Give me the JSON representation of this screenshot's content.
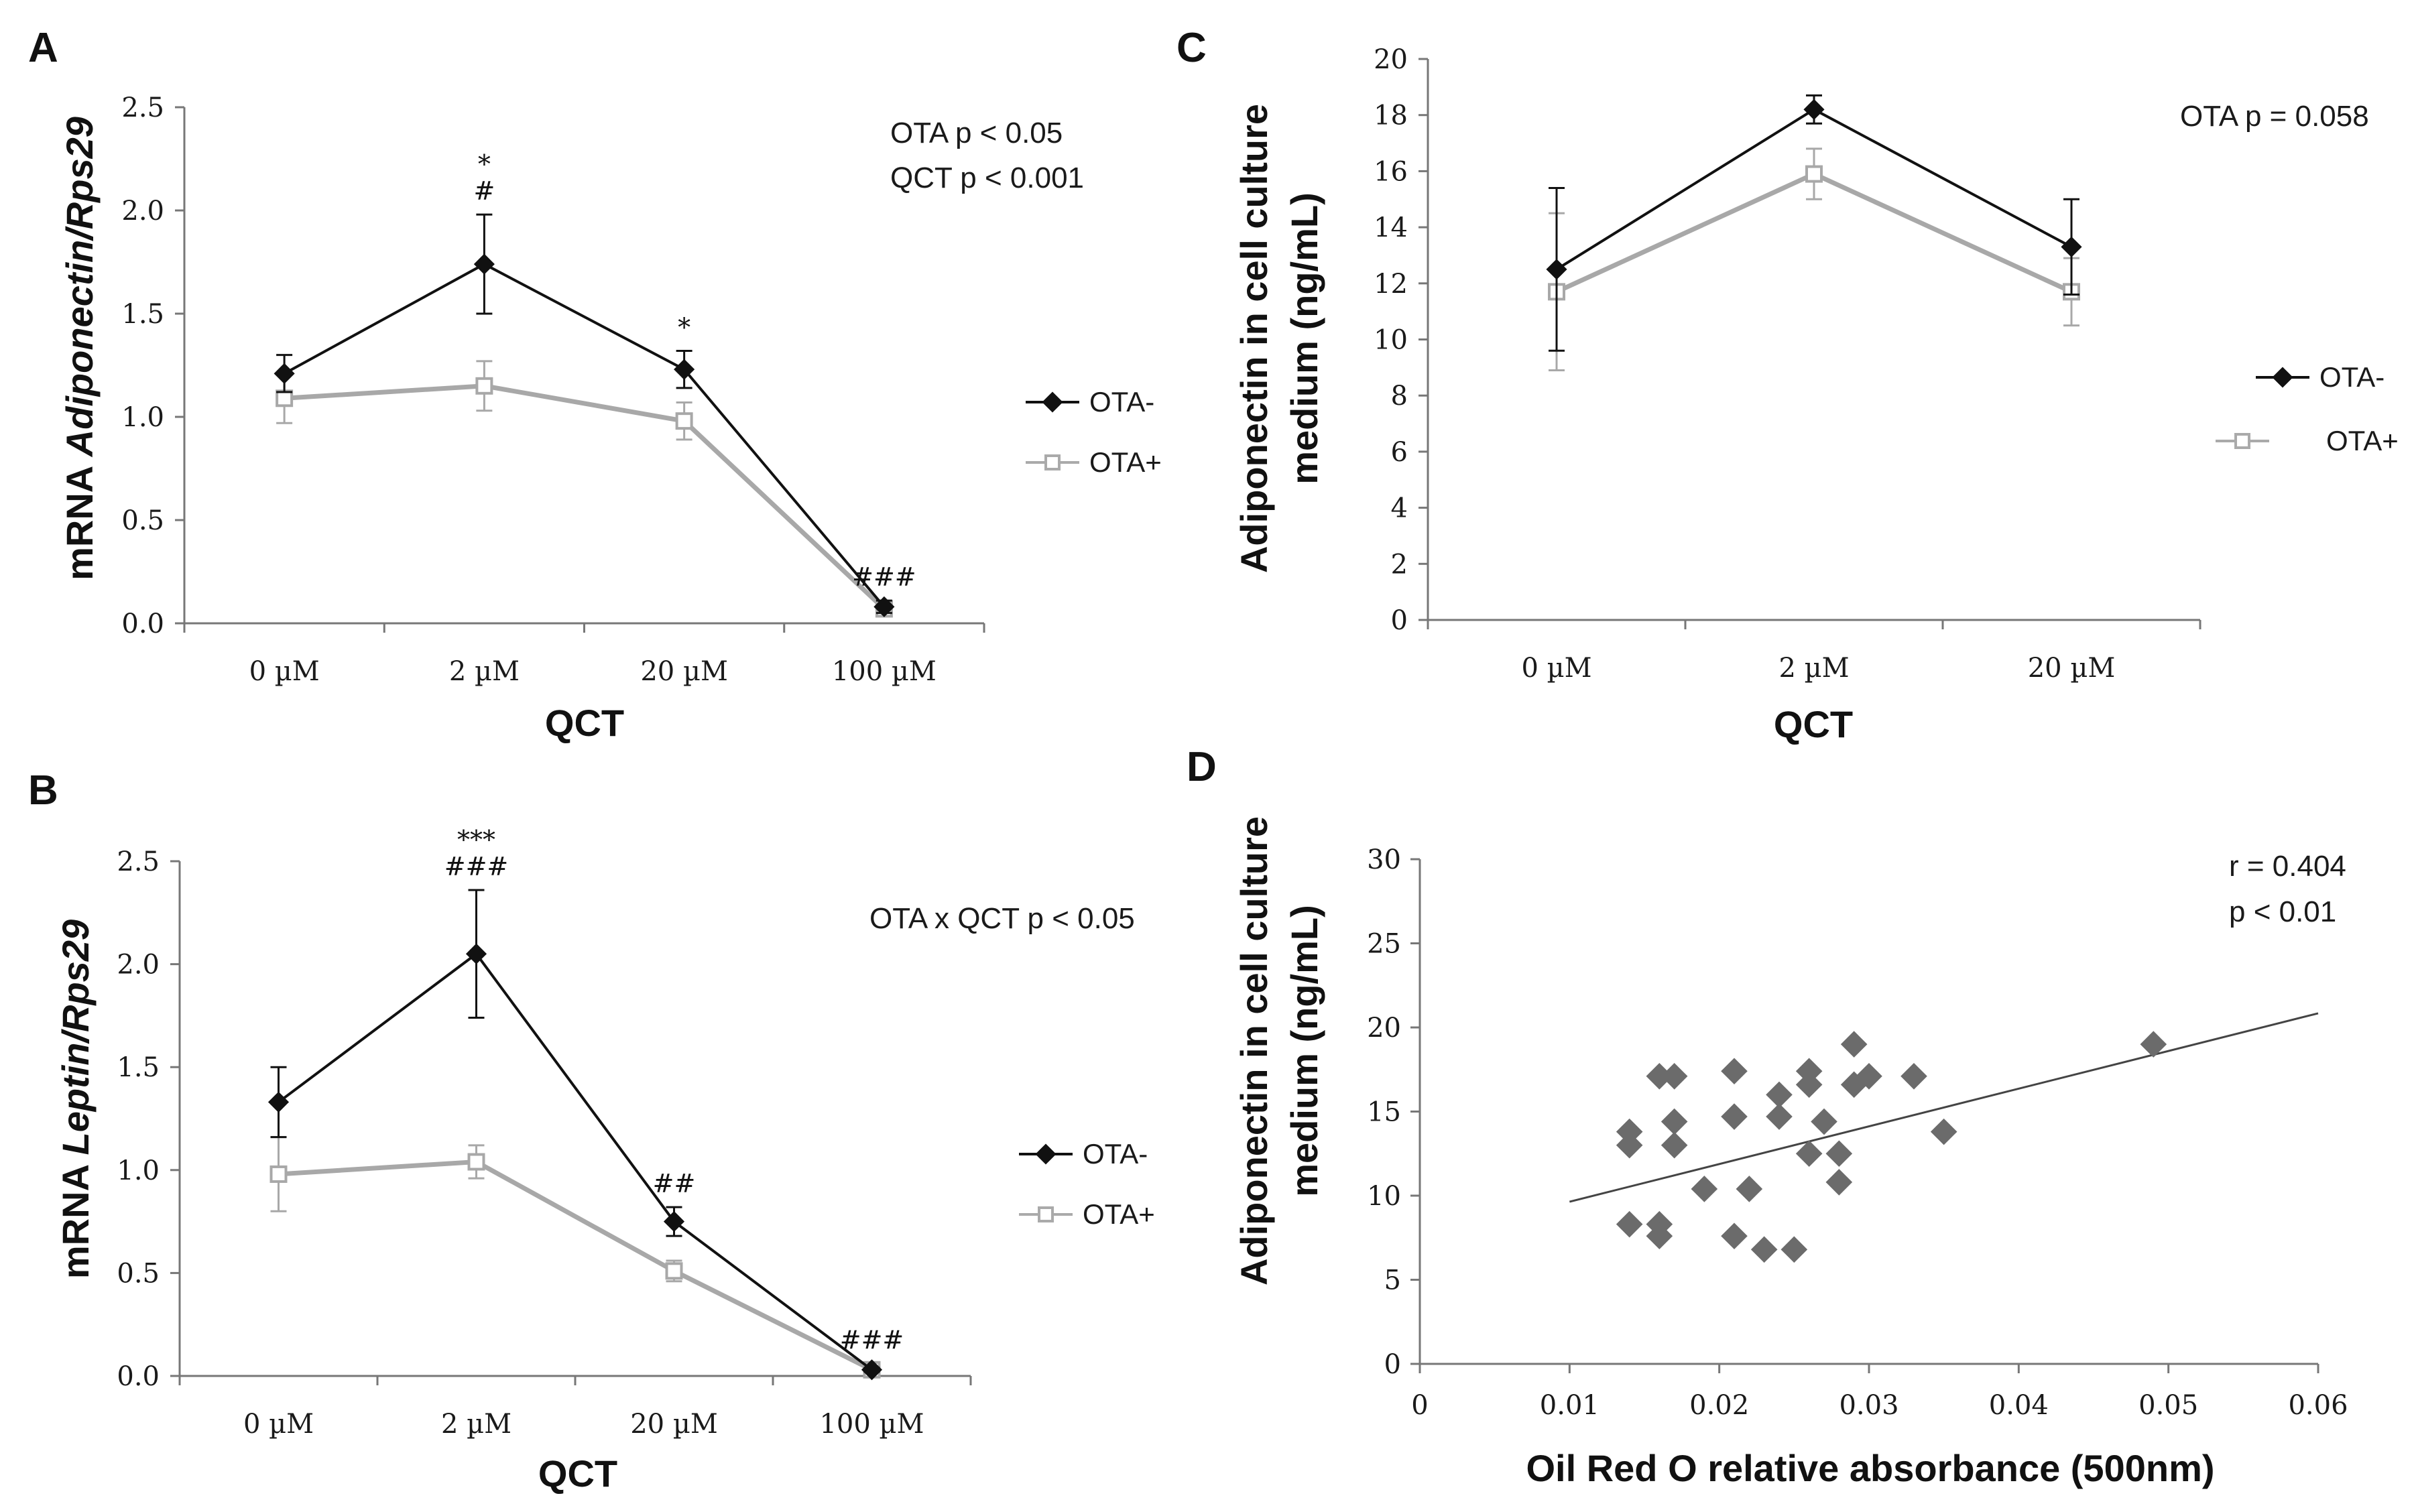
{
  "chart_data": [
    {
      "type": "line",
      "panel": "A",
      "title": "",
      "xlabel": "QCT",
      "ylabel_prefix": "mRNA ",
      "ylabel_italic": "Adiponectin/Rps29",
      "categories": [
        "0 µM",
        "2 µM",
        "20 µM",
        "100 µM"
      ],
      "ylim": [
        0,
        2.5
      ],
      "yticks": [
        0,
        0.5,
        1.0,
        1.5,
        2.0,
        2.5
      ],
      "ytick_labels": [
        "0.0",
        "0.5",
        "1.0",
        "1.5",
        "2.0",
        "2.5"
      ],
      "series": [
        {
          "name": "OTA-",
          "values": [
            1.21,
            1.74,
            1.23,
            0.08
          ],
          "errors": [
            0.09,
            0.24,
            0.09,
            0.03
          ]
        },
        {
          "name": "OTA+",
          "values": [
            1.09,
            1.15,
            0.98,
            0.07
          ],
          "errors": [
            0.12,
            0.12,
            0.09,
            0.02
          ]
        }
      ],
      "stats": [
        "OTA p < 0.05",
        "QCT p < 0.001"
      ],
      "sig_marks": [
        {
          "cat": 1,
          "value": 1.98,
          "lines": [
            "*",
            "#"
          ]
        },
        {
          "cat": 2,
          "value": 1.32,
          "lines": [
            "*"
          ]
        },
        {
          "cat": 3,
          "value": 0.11,
          "lines": [
            "###"
          ]
        }
      ],
      "legend": [
        "OTA-",
        "OTA+"
      ]
    },
    {
      "type": "line",
      "panel": "B",
      "title": "",
      "xlabel": "QCT",
      "ylabel_prefix": "mRNA ",
      "ylabel_italic": "Leptin/Rps29",
      "categories": [
        "0 µM",
        "2 µM",
        "20 µM",
        "100 µM"
      ],
      "ylim": [
        0,
        2.5
      ],
      "yticks": [
        0,
        0.5,
        1.0,
        1.5,
        2.0,
        2.5
      ],
      "ytick_labels": [
        "0.0",
        "0.5",
        "1.0",
        "1.5",
        "2.0",
        "2.5"
      ],
      "series": [
        {
          "name": "OTA-",
          "values": [
            1.33,
            2.05,
            0.75,
            0.03
          ],
          "errors": [
            0.17,
            0.31,
            0.07,
            0.01
          ]
        },
        {
          "name": "OTA+",
          "values": [
            0.98,
            1.04,
            0.51,
            0.03
          ],
          "errors": [
            0.18,
            0.08,
            0.05,
            0.01
          ]
        }
      ],
      "stats": [
        "OTA x QCT  p < 0.05"
      ],
      "sig_marks": [
        {
          "cat": 1,
          "value": 2.36,
          "lines": [
            "***",
            "###"
          ]
        },
        {
          "cat": 2,
          "value": 0.82,
          "lines": [
            "##"
          ]
        },
        {
          "cat": 3,
          "value": 0.06,
          "lines": [
            "###"
          ]
        }
      ],
      "legend": [
        "OTA-",
        "OTA+"
      ]
    },
    {
      "type": "line",
      "panel": "C",
      "title": "",
      "xlabel": "QCT",
      "ylabel_lines": [
        "Adiponectin in cell culture",
        "medium (ng/mL)"
      ],
      "categories": [
        "0 µM",
        "2 µM",
        "20 µM"
      ],
      "ylim": [
        0,
        20
      ],
      "yticks": [
        0,
        2,
        4,
        6,
        8,
        10,
        12,
        14,
        16,
        18,
        20
      ],
      "ytick_labels": [
        "0",
        "2",
        "4",
        "6",
        "8",
        "10",
        "12",
        "14",
        "16",
        "18",
        "20"
      ],
      "series": [
        {
          "name": "OTA-",
          "values": [
            12.5,
            18.2,
            13.3
          ],
          "errors": [
            2.9,
            0.5,
            1.7
          ]
        },
        {
          "name": "OTA+",
          "values": [
            11.7,
            15.9,
            11.7
          ],
          "errors": [
            2.8,
            0.9,
            1.2
          ]
        }
      ],
      "stats": [
        "OTA p = 0.058"
      ],
      "legend": [
        "OTA-",
        "OTA+"
      ]
    },
    {
      "type": "scatter",
      "panel": "D",
      "title": "",
      "xlabel": "Oil Red O relative absorbance (500nm)",
      "ylabel_lines": [
        "Adiponectin in cell culture",
        "medium (ng/mL)"
      ],
      "xlim": [
        0,
        0.06
      ],
      "ylim": [
        0,
        30
      ],
      "xticks": [
        0,
        0.01,
        0.02,
        0.03,
        0.04,
        0.05,
        0.06
      ],
      "xtick_labels": [
        "0",
        "0.01",
        "0.02",
        "0.03",
        "0.04",
        "0.05",
        "0.06"
      ],
      "yticks": [
        0,
        5,
        10,
        15,
        20,
        25,
        30
      ],
      "ytick_labels": [
        "0",
        "5",
        "10",
        "15",
        "20",
        "25",
        "30"
      ],
      "points": [
        [
          0.014,
          13.8
        ],
        [
          0.014,
          13.0
        ],
        [
          0.014,
          8.3
        ],
        [
          0.016,
          17.1
        ],
        [
          0.016,
          8.3
        ],
        [
          0.016,
          7.6
        ],
        [
          0.017,
          17.1
        ],
        [
          0.017,
          14.4
        ],
        [
          0.017,
          13.0
        ],
        [
          0.019,
          10.4
        ],
        [
          0.021,
          17.4
        ],
        [
          0.021,
          14.7
        ],
        [
          0.021,
          7.6
        ],
        [
          0.022,
          10.4
        ],
        [
          0.023,
          6.8
        ],
        [
          0.024,
          16.0
        ],
        [
          0.024,
          14.7
        ],
        [
          0.025,
          6.8
        ],
        [
          0.026,
          17.4
        ],
        [
          0.026,
          16.6
        ],
        [
          0.026,
          12.5
        ],
        [
          0.027,
          14.4
        ],
        [
          0.028,
          12.5
        ],
        [
          0.028,
          10.8
        ],
        [
          0.029,
          19.0
        ],
        [
          0.029,
          16.6
        ],
        [
          0.03,
          17.1
        ],
        [
          0.033,
          17.1
        ],
        [
          0.035,
          13.8
        ],
        [
          0.049,
          19.0
        ]
      ],
      "trendline": {
        "intercept": 7.4,
        "slope": 224
      },
      "stats": [
        "r = 0.404",
        "p < 0.01"
      ]
    }
  ],
  "panel_labels": [
    "A",
    "B",
    "C",
    "D"
  ]
}
